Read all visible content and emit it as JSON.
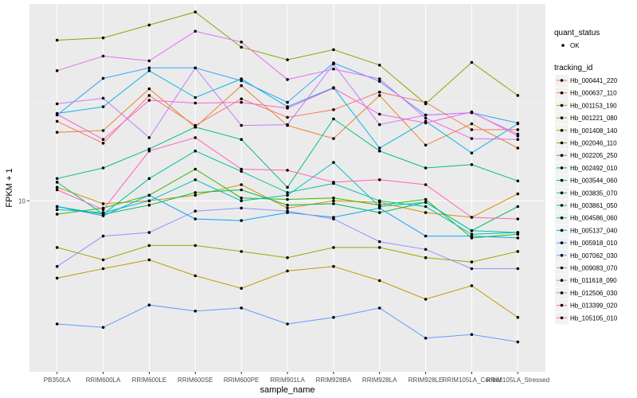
{
  "chart_data": {
    "type": "line",
    "xlabel": "sample_name",
    "ylabel": "FPKM + 1",
    "y_scale": "log10",
    "ylim": [
      3.0,
      40.0
    ],
    "y_ticks": [
      10
    ],
    "y_tick_labels": [
      "10"
    ],
    "categories": [
      "PB350LA",
      "RRIM600LA",
      "RRIM600LE",
      "RRIM600SE",
      "RRIM600PE",
      "RRIM901LA",
      "RRIM928BA",
      "RRIM928LA",
      "RRIM928LE",
      "RRIM105LA_Control",
      "RRIM105LA_Stressed"
    ],
    "legend_point": {
      "title": "quant_status",
      "label": "OK"
    },
    "legend_line": {
      "title": "tracking_id",
      "position": "right"
    },
    "grid": true,
    "series": [
      {
        "name": "Hb_000441_220",
        "color": "#F8766D",
        "values": [
          17.5,
          15.0,
          21.0,
          17.0,
          20.5,
          18.0,
          19.0,
          21.5,
          20.0,
          16.5,
          16.5
        ]
      },
      {
        "name": "Hb_000637_110",
        "color": "#EA8331",
        "values": [
          16.2,
          16.4,
          22.0,
          16.8,
          22.5,
          17.0,
          15.5,
          21.0,
          14.8,
          17.2,
          14.5
        ]
      },
      {
        "name": "Hb_001153_190",
        "color": "#D89000",
        "values": [
          11.0,
          9.8,
          10.0,
          10.4,
          11.2,
          9.5,
          10.0,
          9.9,
          9.2,
          8.9,
          10.5
        ]
      },
      {
        "name": "Hb_001221_080",
        "color": "#C09B00",
        "values": [
          5.8,
          6.2,
          6.6,
          5.9,
          5.4,
          6.1,
          6.3,
          5.7,
          5.0,
          5.5,
          4.4
        ]
      },
      {
        "name": "Hb_001408_140",
        "color": "#A3A500",
        "values": [
          7.2,
          6.6,
          7.3,
          7.3,
          7.0,
          6.7,
          7.2,
          7.2,
          6.7,
          6.5,
          7.0
        ]
      },
      {
        "name": "Hb_002046_110",
        "color": "#7CAE00",
        "values": [
          31.0,
          31.5,
          34.5,
          37.8,
          29.5,
          27.0,
          29.0,
          26.0,
          19.8,
          26.5,
          21.0
        ]
      },
      {
        "name": "Hb_002205_250",
        "color": "#39B600",
        "values": [
          9.1,
          9.5,
          10.4,
          12.5,
          10.2,
          10.1,
          10.2,
          9.7,
          10.1,
          7.7,
          7.9
        ]
      },
      {
        "name": "Hb_002492_010",
        "color": "#00BB4E",
        "values": [
          9.6,
          9.1,
          9.7,
          10.6,
          10.8,
          9.7,
          9.8,
          9.2,
          9.9,
          8.1,
          9.6
        ]
      },
      {
        "name": "Hb_003544_060",
        "color": "#00BF7D",
        "values": [
          11.7,
          12.6,
          14.4,
          16.8,
          15.4,
          11.0,
          17.8,
          14.2,
          12.6,
          12.9,
          11.5
        ]
      },
      {
        "name": "Hb_003835_070",
        "color": "#00C1A3",
        "values": [
          11.4,
          9.1,
          11.7,
          14.2,
          12.3,
          10.6,
          11.3,
          10.0,
          9.6,
          7.9,
          8.0
        ]
      },
      {
        "name": "Hb_003861_050",
        "color": "#00BFC4",
        "values": [
          9.4,
          9.2,
          10.0,
          11.6,
          10.0,
          10.4,
          13.1,
          9.6,
          9.9,
          8.1,
          8.0
        ]
      },
      {
        "name": "Hb_004586_060",
        "color": "#00B8E7",
        "values": [
          18.5,
          19.4,
          25.0,
          20.7,
          23.6,
          19.4,
          22.2,
          14.5,
          17.5,
          14.0,
          17.2
        ]
      },
      {
        "name": "Hb_005137_040",
        "color": "#00A9FF",
        "values": [
          9.6,
          9.0,
          10.4,
          8.8,
          8.7,
          9.2,
          8.9,
          9.5,
          7.8,
          7.8,
          7.7
        ]
      },
      {
        "name": "Hb_005918_010",
        "color": "#35A2FF",
        "values": [
          18.3,
          23.7,
          25.5,
          25.5,
          23.3,
          20.0,
          26.4,
          23.2,
          18.3,
          18.6,
          17.3
        ]
      },
      {
        "name": "Hb_007062_030",
        "color": "#619CFF",
        "values": [
          4.2,
          4.1,
          4.8,
          4.6,
          4.7,
          4.2,
          4.4,
          4.7,
          3.8,
          3.9,
          3.7
        ]
      },
      {
        "name": "Hb_009083_070",
        "color": "#9590FF",
        "values": [
          6.3,
          7.8,
          8.0,
          9.3,
          9.5,
          9.3,
          8.8,
          7.5,
          7.1,
          6.2,
          6.2
        ]
      },
      {
        "name": "Hb_011618_090",
        "color": "#C77CFF",
        "values": [
          19.8,
          20.6,
          15.6,
          25.5,
          17.0,
          17.1,
          26.2,
          17.1,
          18.3,
          18.6,
          16.0
        ]
      },
      {
        "name": "Hb_012506_030",
        "color": "#E76BF3",
        "values": [
          25.0,
          27.7,
          26.8,
          33.0,
          30.6,
          23.5,
          25.3,
          23.6,
          17.9,
          15.5,
          15.4
        ]
      },
      {
        "name": "Hb_013399_020",
        "color": "#FA62DB",
        "values": [
          18.4,
          15.4,
          20.3,
          19.9,
          20.0,
          19.2,
          22.1,
          18.4,
          17.3,
          18.7,
          15.8
        ]
      },
      {
        "name": "Hb_105105_010",
        "color": "#FF62BC",
        "values": [
          10.8,
          9.4,
          14.2,
          15.6,
          12.5,
          12.4,
          11.4,
          11.6,
          11.2,
          8.9,
          8.8
        ]
      }
    ]
  }
}
